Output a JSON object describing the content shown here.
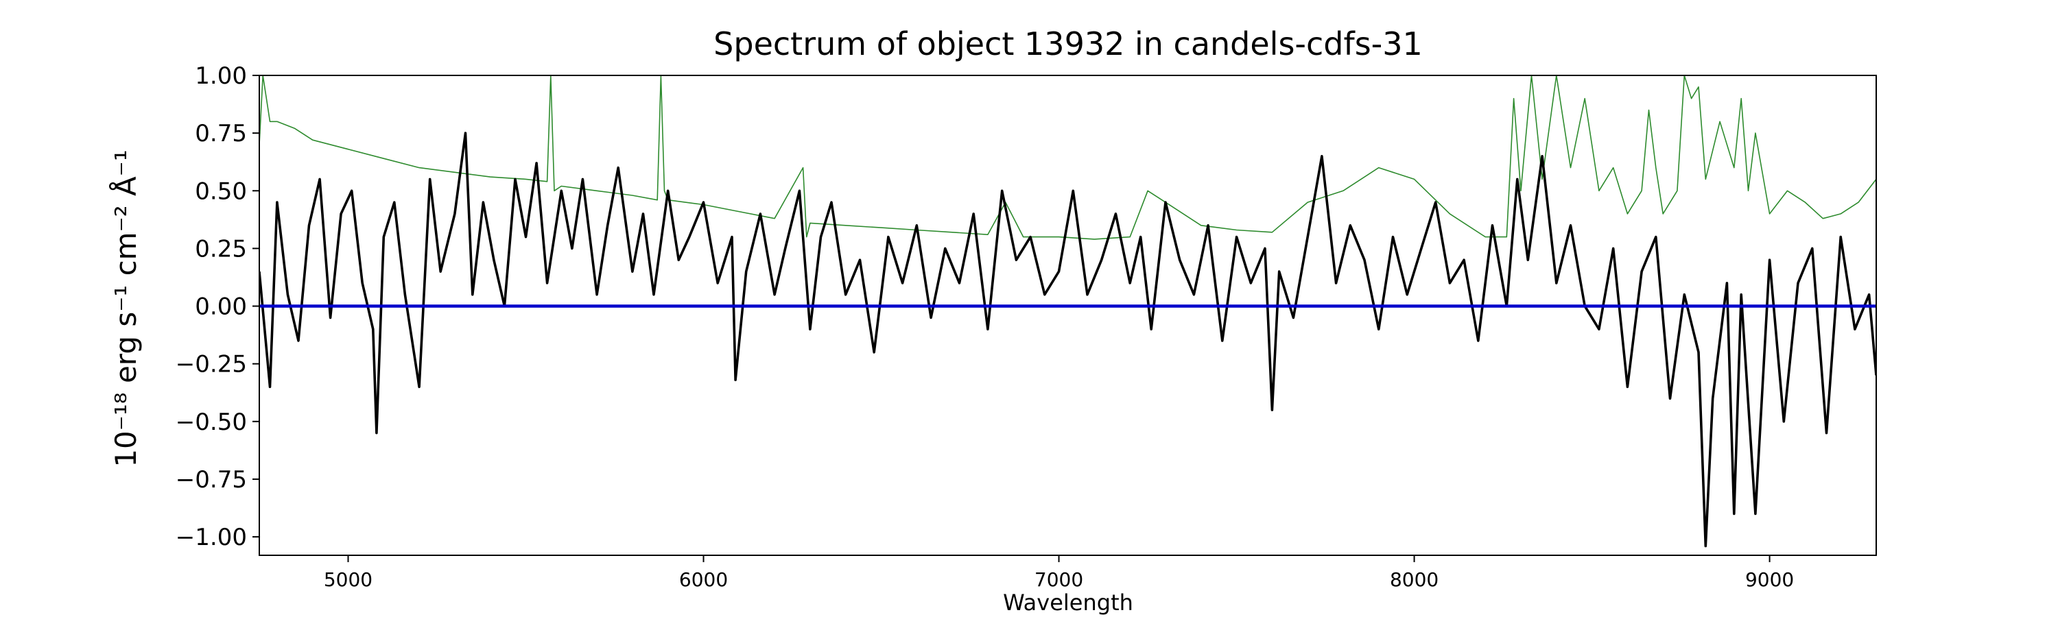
{
  "chart_data": {
    "type": "line",
    "title": "Spectrum of object 13932 in candels-cdfs-31",
    "xlabel": "Wavelength",
    "ylabel": "10⁻¹⁸ erg s⁻¹ cm⁻² Å⁻¹",
    "xlim": [
      4750,
      9300
    ],
    "ylim": [
      -1.08,
      1.0
    ],
    "x_ticks": [
      5000,
      6000,
      7000,
      8000,
      9000
    ],
    "x_tick_labels": [
      "5000",
      "6000",
      "7000",
      "8000",
      "9000"
    ],
    "y_ticks": [
      1.0,
      0.75,
      0.5,
      0.25,
      0.0,
      -0.25,
      -0.5,
      -0.75,
      -1.0
    ],
    "y_tick_labels": [
      "1.00",
      "0.75",
      "0.50",
      "0.25",
      "0.00",
      "−0.25",
      "−0.50",
      "−0.75",
      "−1.00"
    ],
    "grid": false,
    "colors": {
      "flux": "#000000",
      "error": "#2e8b2e",
      "zero": "#0000cc"
    },
    "series": [
      {
        "role": "flux",
        "x": [
          4750,
          4780,
          4800,
          4830,
          4860,
          4890,
          4920,
          4950,
          4980,
          5010,
          5040,
          5070,
          5080,
          5100,
          5130,
          5160,
          5200,
          5230,
          5260,
          5300,
          5330,
          5350,
          5380,
          5410,
          5440,
          5470,
          5500,
          5530,
          5560,
          5600,
          5630,
          5660,
          5700,
          5730,
          5760,
          5800,
          5830,
          5860,
          5900,
          5930,
          5960,
          6000,
          6040,
          6080,
          6090,
          6120,
          6160,
          6200,
          6230,
          6270,
          6300,
          6330,
          6360,
          6400,
          6440,
          6480,
          6520,
          6560,
          6600,
          6640,
          6680,
          6720,
          6760,
          6800,
          6840,
          6880,
          6920,
          6960,
          7000,
          7040,
          7080,
          7120,
          7160,
          7200,
          7230,
          7260,
          7300,
          7340,
          7380,
          7420,
          7460,
          7500,
          7540,
          7580,
          7600,
          7620,
          7660,
          7700,
          7740,
          7780,
          7820,
          7860,
          7900,
          7940,
          7980,
          8020,
          8060,
          8100,
          8140,
          8180,
          8220,
          8260,
          8290,
          8320,
          8360,
          8400,
          8440,
          8480,
          8520,
          8560,
          8600,
          8640,
          8680,
          8720,
          8760,
          8800,
          8820,
          8840,
          8880,
          8900,
          8920,
          8960,
          9000,
          9040,
          9080,
          9120,
          9160,
          9200,
          9240,
          9280,
          9300
        ],
        "y": [
          0.15,
          -0.35,
          0.45,
          0.05,
          -0.15,
          0.35,
          0.55,
          -0.05,
          0.4,
          0.5,
          0.1,
          -0.1,
          -0.55,
          0.3,
          0.45,
          0.05,
          -0.35,
          0.55,
          0.15,
          0.4,
          0.75,
          0.05,
          0.45,
          0.2,
          0.0,
          0.55,
          0.3,
          0.62,
          0.1,
          0.5,
          0.25,
          0.55,
          0.05,
          0.35,
          0.6,
          0.15,
          0.4,
          0.05,
          0.5,
          0.2,
          0.3,
          0.45,
          0.1,
          0.3,
          -0.32,
          0.15,
          0.4,
          0.05,
          0.25,
          0.5,
          -0.1,
          0.3,
          0.45,
          0.05,
          0.2,
          -0.2,
          0.3,
          0.1,
          0.35,
          -0.05,
          0.25,
          0.1,
          0.4,
          -0.1,
          0.5,
          0.2,
          0.3,
          0.05,
          0.15,
          0.5,
          0.05,
          0.2,
          0.4,
          0.1,
          0.3,
          -0.1,
          0.45,
          0.2,
          0.05,
          0.35,
          -0.15,
          0.3,
          0.1,
          0.25,
          -0.45,
          0.15,
          -0.05,
          0.3,
          0.65,
          0.1,
          0.35,
          0.2,
          -0.1,
          0.3,
          0.05,
          0.25,
          0.45,
          0.1,
          0.2,
          -0.15,
          0.35,
          0.0,
          0.55,
          0.2,
          0.65,
          0.1,
          0.35,
          0.0,
          -0.1,
          0.25,
          -0.35,
          0.15,
          0.3,
          -0.4,
          0.05,
          -0.2,
          -1.04,
          -0.4,
          0.1,
          -0.9,
          0.05,
          -0.9,
          0.2,
          -0.5,
          0.1,
          0.25,
          -0.55,
          0.3,
          -0.1,
          0.05,
          -0.3
        ]
      },
      {
        "role": "error",
        "x": [
          4750,
          4760,
          4780,
          4800,
          4850,
          4900,
          5000,
          5100,
          5200,
          5300,
          5400,
          5500,
          5560,
          5570,
          5580,
          5600,
          5700,
          5800,
          5870,
          5880,
          5890,
          5900,
          6000,
          6100,
          6200,
          6280,
          6290,
          6300,
          6400,
          6500,
          6600,
          6700,
          6800,
          6850,
          6900,
          7000,
          7100,
          7200,
          7250,
          7300,
          7400,
          7500,
          7600,
          7700,
          7800,
          7900,
          8000,
          8100,
          8200,
          8260,
          8280,
          8300,
          8330,
          8360,
          8400,
          8440,
          8480,
          8520,
          8560,
          8600,
          8640,
          8660,
          8680,
          8700,
          8740,
          8760,
          8780,
          8800,
          8820,
          8860,
          8900,
          8920,
          8940,
          8960,
          9000,
          9050,
          9100,
          9150,
          9200,
          9250,
          9300
        ],
        "y": [
          0.7,
          1.0,
          0.8,
          0.8,
          0.77,
          0.72,
          0.68,
          0.64,
          0.6,
          0.58,
          0.56,
          0.55,
          0.54,
          1.0,
          0.5,
          0.52,
          0.5,
          0.48,
          0.46,
          1.0,
          0.5,
          0.46,
          0.44,
          0.41,
          0.38,
          0.6,
          0.3,
          0.36,
          0.35,
          0.34,
          0.33,
          0.32,
          0.31,
          0.45,
          0.3,
          0.3,
          0.29,
          0.3,
          0.5,
          0.45,
          0.35,
          0.33,
          0.32,
          0.45,
          0.5,
          0.6,
          0.55,
          0.4,
          0.3,
          0.3,
          0.9,
          0.5,
          1.0,
          0.55,
          1.0,
          0.6,
          0.9,
          0.5,
          0.6,
          0.4,
          0.5,
          0.85,
          0.6,
          0.4,
          0.5,
          1.0,
          0.9,
          0.95,
          0.55,
          0.8,
          0.6,
          0.9,
          0.5,
          0.75,
          0.4,
          0.5,
          0.45,
          0.38,
          0.4,
          0.45,
          0.55
        ]
      },
      {
        "role": "zero",
        "x": [
          4750,
          9300
        ],
        "y": [
          0.0,
          0.0
        ]
      }
    ]
  }
}
